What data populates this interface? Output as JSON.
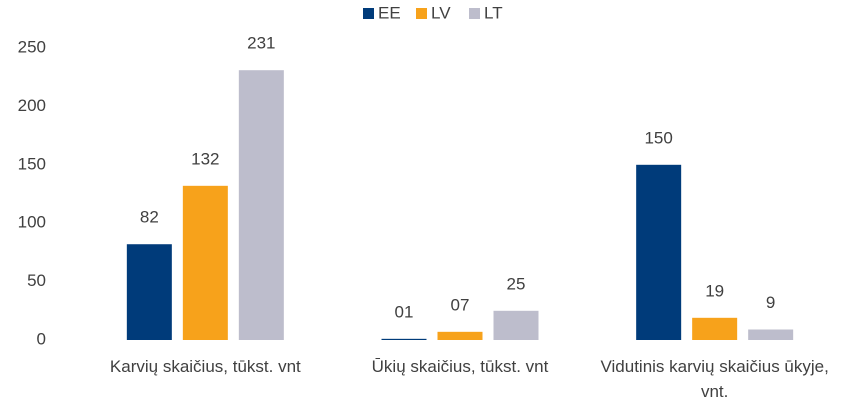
{
  "chart_data": {
    "type": "bar",
    "categories": [
      "Karvių skaičius, tūkst. vnt",
      "Ūkių skaičius, tūkst. vnt",
      "Vidutinis karvių skaičius ūkyje, vnt."
    ],
    "series": [
      {
        "name": "EE",
        "color": "#003b7a",
        "values": [
          82,
          1,
          150
        ],
        "value_labels": [
          "82",
          "01",
          "150"
        ]
      },
      {
        "name": "LV",
        "color": "#f7a21b",
        "values": [
          132,
          7,
          19
        ],
        "value_labels": [
          "132",
          "07",
          "19"
        ]
      },
      {
        "name": "LT",
        "color": "#bdbdcc",
        "values": [
          231,
          25,
          9
        ],
        "value_labels": [
          "231",
          "25",
          "9"
        ]
      }
    ],
    "ylim": [
      0,
      250
    ],
    "yticks": [
      0,
      50,
      100,
      150,
      200,
      250
    ],
    "grid": false,
    "legend": "top"
  }
}
